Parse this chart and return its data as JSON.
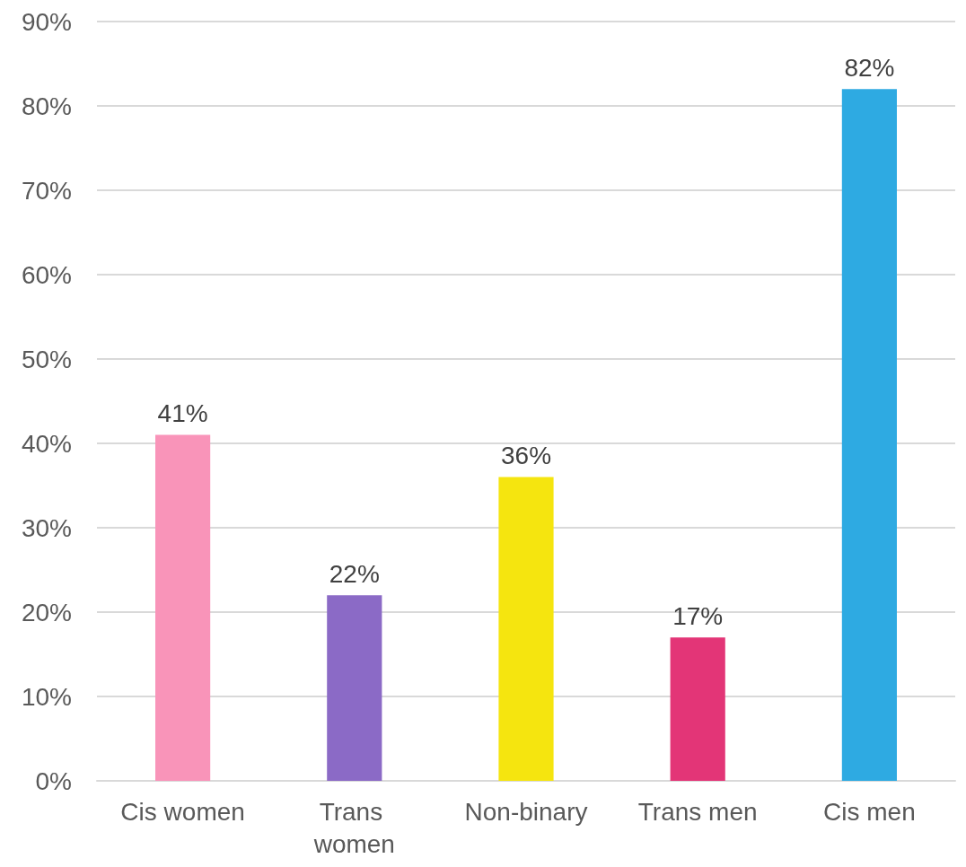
{
  "chart_data": {
    "type": "bar",
    "categories": [
      "Cis women",
      "Trans women",
      "Non-binary",
      "Trans men",
      "Cis men"
    ],
    "values": [
      41,
      22,
      36,
      17,
      82
    ],
    "colors": [
      "#f994b9",
      "#8b6ac6",
      "#f5e50f",
      "#e33577",
      "#2eaae2"
    ],
    "value_labels": [
      "41%",
      "22%",
      "36%",
      "17%",
      "82%"
    ],
    "ylim": [
      0,
      90
    ],
    "yticks": [
      {
        "value": 0,
        "label": "0%"
      },
      {
        "value": 10,
        "label": "10%"
      },
      {
        "value": 20,
        "label": "20%"
      },
      {
        "value": 30,
        "label": "30%"
      },
      {
        "value": 40,
        "label": "40%"
      },
      {
        "value": 50,
        "label": "50%"
      },
      {
        "value": 60,
        "label": "60%"
      },
      {
        "value": 70,
        "label": "70%"
      },
      {
        "value": 80,
        "label": "80%"
      },
      {
        "value": 90,
        "label": "90%"
      }
    ],
    "grid": "y"
  }
}
